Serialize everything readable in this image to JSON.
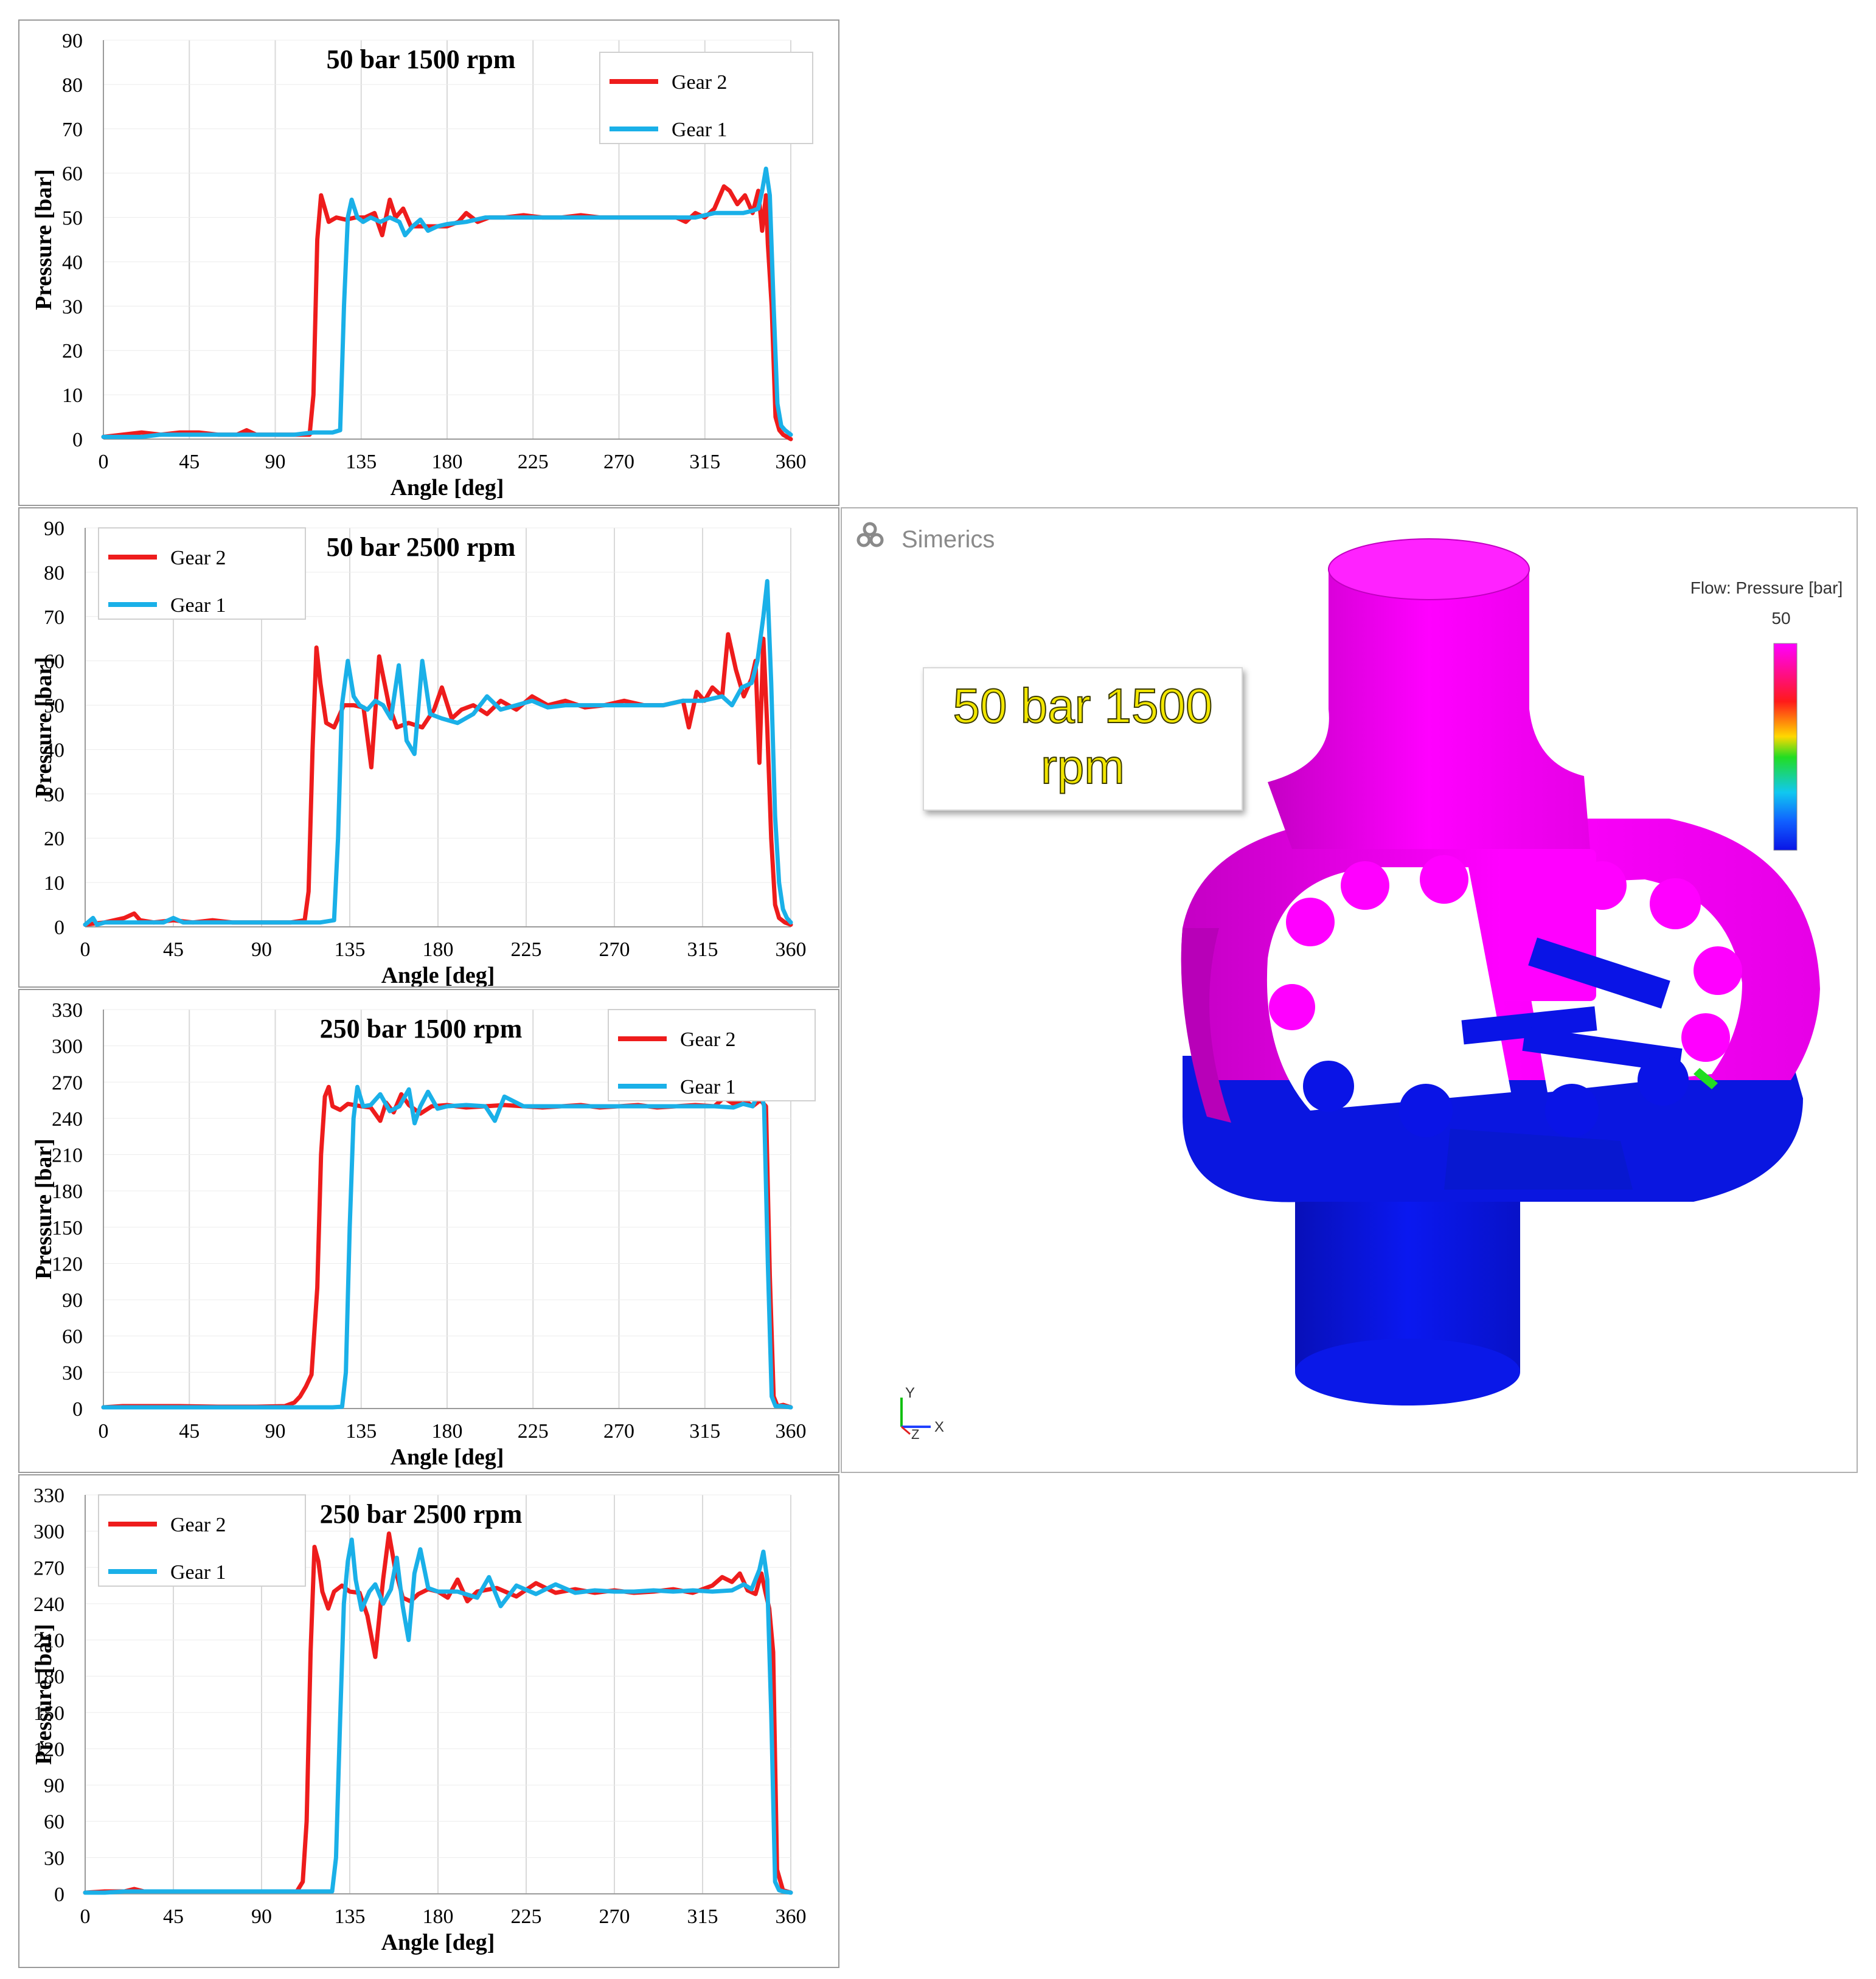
{
  "chart_data": [
    {
      "type": "line",
      "title": "50 bar 1500 rpm",
      "xlabel": "Angle [deg]",
      "ylabel": "Pressure [bar]",
      "xlim": [
        0,
        360
      ],
      "ylim": [
        0,
        90
      ],
      "xticks": [
        0,
        45,
        90,
        135,
        180,
        225,
        270,
        315,
        360
      ],
      "yticks": [
        0,
        10,
        20,
        30,
        40,
        50,
        60,
        70,
        80,
        90
      ],
      "legend": "top-right",
      "grid": true,
      "series": [
        {
          "name": "Gear 2",
          "color": "#ee1c1c",
          "x": [
            0,
            10,
            20,
            30,
            40,
            50,
            60,
            70,
            75,
            80,
            90,
            100,
            108,
            110,
            112,
            114,
            116,
            118,
            122,
            127,
            132,
            137,
            142,
            146,
            150,
            153,
            157,
            161,
            166,
            172,
            180,
            186,
            190,
            196,
            202,
            210,
            220,
            230,
            240,
            250,
            260,
            270,
            280,
            290,
            300,
            305,
            310,
            315,
            320,
            325,
            328,
            332,
            336,
            340,
            343,
            345,
            347,
            348,
            350,
            352,
            354,
            356,
            358,
            360
          ],
          "y": [
            0.5,
            1,
            1.5,
            1,
            1.5,
            1.5,
            1,
            1,
            2,
            1,
            1,
            1,
            1,
            10,
            45,
            55,
            52,
            49,
            50,
            49.5,
            50,
            50,
            51,
            46,
            54,
            50,
            52,
            48,
            48,
            48,
            48,
            49,
            51,
            49,
            50,
            50,
            50.5,
            50,
            50,
            50.5,
            50,
            50,
            50,
            50,
            50,
            49,
            51,
            50,
            52,
            57,
            56,
            53,
            55,
            51,
            56,
            47,
            55,
            44,
            30,
            5,
            2,
            1,
            0.5,
            0
          ]
        },
        {
          "name": "Gear 1",
          "color": "#1ab0e8",
          "x": [
            0,
            10,
            20,
            30,
            40,
            50,
            60,
            70,
            80,
            90,
            100,
            110,
            120,
            124,
            126,
            128,
            130,
            133,
            136,
            140,
            145,
            150,
            155,
            158,
            162,
            166,
            170,
            175,
            180,
            190,
            200,
            210,
            220,
            230,
            240,
            250,
            260,
            270,
            280,
            290,
            300,
            310,
            320,
            330,
            335,
            340,
            343,
            345,
            347,
            349,
            351,
            353,
            355,
            357,
            360
          ],
          "y": [
            0.5,
            0.5,
            0.5,
            1,
            1,
            1,
            1,
            1,
            1,
            1,
            1,
            1.5,
            1.5,
            2,
            30,
            50,
            54,
            50,
            49,
            50,
            49,
            50,
            49,
            46,
            48,
            49.5,
            47,
            48,
            48.5,
            49,
            50,
            50,
            50,
            50,
            50,
            50,
            50,
            50,
            50,
            50,
            50,
            50,
            51,
            51,
            51,
            51.5,
            52,
            56,
            61,
            55,
            30,
            8,
            3,
            2,
            1
          ]
        }
      ]
    },
    {
      "type": "line",
      "title": "50 bar 2500 rpm",
      "xlabel": "Angle [deg]",
      "ylabel": "Pressure [bar]",
      "xlim": [
        0,
        360
      ],
      "ylim": [
        0,
        90
      ],
      "xticks": [
        0,
        45,
        90,
        135,
        180,
        225,
        270,
        315,
        360
      ],
      "yticks": [
        0,
        10,
        20,
        30,
        40,
        50,
        60,
        70,
        80,
        90
      ],
      "legend": "top-left",
      "grid": true,
      "series": [
        {
          "name": "Gear 2",
          "color": "#ee1c1c",
          "x": [
            0,
            10,
            20,
            25,
            28,
            35,
            45,
            55,
            65,
            75,
            85,
            95,
            105,
            112,
            114,
            116,
            118,
            120,
            123,
            127,
            132,
            137,
            142,
            146,
            150,
            155,
            159,
            165,
            172,
            178,
            182,
            187,
            192,
            198,
            205,
            212,
            220,
            228,
            236,
            245,
            255,
            265,
            275,
            285,
            295,
            305,
            308,
            312,
            316,
            320,
            325,
            328,
            332,
            336,
            340,
            342,
            344,
            346,
            348,
            350,
            352,
            354,
            357,
            360
          ],
          "y": [
            0.5,
            1,
            2,
            3,
            1.5,
            1,
            1.5,
            1,
            1.5,
            1,
            1,
            1,
            1,
            1.5,
            8,
            40,
            63,
            55,
            46,
            45,
            50,
            50,
            49.5,
            36,
            61,
            50,
            45,
            46,
            45,
            49,
            54,
            47,
            49,
            50,
            48,
            51,
            49,
            52,
            50,
            51,
            49.5,
            50,
            51,
            50,
            50,
            51,
            45,
            53,
            51,
            54,
            52,
            66,
            58,
            52,
            56,
            60,
            37,
            65,
            45,
            20,
            5,
            2,
            1,
            0.5
          ]
        },
        {
          "name": "Gear 1",
          "color": "#1ab0e8",
          "x": [
            0,
            4,
            6,
            10,
            20,
            30,
            40,
            45,
            50,
            60,
            70,
            80,
            90,
            100,
            110,
            120,
            127,
            129,
            131,
            134,
            137,
            140,
            144,
            148,
            152,
            156,
            160,
            164,
            168,
            172,
            176,
            182,
            190,
            198,
            205,
            212,
            220,
            228,
            236,
            245,
            255,
            265,
            275,
            285,
            295,
            305,
            315,
            325,
            330,
            335,
            340,
            343,
            346,
            348,
            350,
            352,
            354,
            356,
            358,
            360
          ],
          "y": [
            0.5,
            2,
            0.5,
            1,
            1,
            1,
            1,
            2,
            1,
            1,
            1,
            1,
            1,
            1,
            1,
            1,
            1.5,
            20,
            50,
            60,
            52,
            50,
            49,
            51,
            50,
            47,
            59,
            42,
            39,
            60,
            48,
            47,
            46,
            48,
            52,
            49,
            50,
            51,
            49.5,
            50,
            50,
            50,
            50,
            50,
            50,
            51,
            51,
            52,
            50,
            54,
            55,
            60,
            70,
            78,
            55,
            25,
            10,
            4,
            2,
            1
          ]
        }
      ]
    },
    {
      "type": "line",
      "title": "250 bar 1500 rpm",
      "xlabel": "Angle [deg]",
      "ylabel": "Pressure [bar]",
      "xlim": [
        0,
        360
      ],
      "ylim": [
        0,
        330
      ],
      "xticks": [
        0,
        45,
        90,
        135,
        180,
        225,
        270,
        315,
        360
      ],
      "yticks": [
        0,
        30,
        60,
        90,
        120,
        150,
        180,
        210,
        240,
        270,
        300,
        330
      ],
      "legend": "top-right",
      "grid": true,
      "series": [
        {
          "name": "Gear 2",
          "color": "#ee1c1c",
          "x": [
            0,
            10,
            20,
            40,
            60,
            80,
            95,
            100,
            103,
            106,
            109,
            112,
            114,
            116,
            118,
            120,
            124,
            128,
            135,
            140,
            145,
            148,
            152,
            156,
            160,
            166,
            172,
            180,
            190,
            200,
            210,
            220,
            230,
            240,
            250,
            260,
            270,
            280,
            290,
            300,
            310,
            320,
            325,
            330,
            335,
            340,
            344,
            347,
            349,
            351,
            353,
            356,
            360
          ],
          "y": [
            1,
            2,
            2,
            2,
            1.5,
            1.5,
            2,
            5,
            10,
            18,
            28,
            100,
            210,
            258,
            266,
            250,
            247,
            252,
            250,
            249,
            238,
            253,
            245,
            260,
            251,
            244,
            250,
            251,
            249,
            250,
            251,
            250,
            249,
            250,
            251,
            249,
            250,
            251,
            249,
            250,
            251,
            250,
            257,
            252,
            256,
            250,
            255,
            250,
            110,
            10,
            2,
            3,
            1
          ]
        },
        {
          "name": "Gear 1",
          "color": "#1ab0e8",
          "x": [
            0,
            10,
            20,
            40,
            60,
            80,
            100,
            110,
            120,
            125,
            127,
            129,
            131,
            133,
            136,
            140,
            145,
            150,
            155,
            160,
            163,
            166,
            170,
            175,
            180,
            190,
            200,
            205,
            210,
            220,
            230,
            240,
            250,
            260,
            270,
            280,
            290,
            300,
            310,
            320,
            330,
            335,
            340,
            344,
            346,
            348,
            350,
            352,
            355,
            360
          ],
          "y": [
            1,
            1,
            1,
            1,
            1,
            1,
            1,
            1,
            1,
            1.5,
            30,
            150,
            240,
            266,
            250,
            251,
            260,
            246,
            250,
            264,
            236,
            250,
            262,
            248,
            250,
            251,
            250,
            238,
            258,
            250,
            250,
            250,
            250,
            250,
            250,
            250,
            250,
            250,
            250,
            250,
            249,
            252,
            250,
            264,
            250,
            120,
            10,
            2,
            2,
            1
          ]
        }
      ]
    },
    {
      "type": "line",
      "title": "250 bar 2500 rpm",
      "xlabel": "Angle [deg]",
      "ylabel": "Pressure [bar]",
      "xlim": [
        0,
        360
      ],
      "ylim": [
        0,
        330
      ],
      "xticks": [
        0,
        45,
        90,
        135,
        180,
        225,
        270,
        315,
        360
      ],
      "yticks": [
        0,
        30,
        60,
        90,
        120,
        150,
        180,
        210,
        240,
        270,
        300,
        330
      ],
      "legend": "top-left",
      "grid": true,
      "series": [
        {
          "name": "Gear 2",
          "color": "#ee1c1c",
          "x": [
            0,
            10,
            20,
            25,
            30,
            40,
            50,
            60,
            70,
            80,
            90,
            100,
            108,
            111,
            113,
            115,
            117,
            119,
            121,
            124,
            127,
            131,
            135,
            140,
            144,
            148,
            152,
            155,
            158,
            162,
            166,
            170,
            175,
            180,
            185,
            190,
            195,
            200,
            210,
            220,
            230,
            240,
            250,
            260,
            270,
            280,
            290,
            300,
            310,
            320,
            325,
            330,
            334,
            338,
            342,
            345,
            347,
            349,
            351,
            353,
            356,
            360
          ],
          "y": [
            1,
            2,
            2,
            4,
            2,
            2,
            2,
            2,
            2,
            2,
            2,
            2,
            2,
            10,
            60,
            200,
            287,
            275,
            250,
            236,
            250,
            255,
            250,
            249,
            230,
            196,
            260,
            298,
            270,
            245,
            242,
            248,
            252,
            250,
            245,
            260,
            242,
            250,
            253,
            246,
            257,
            249,
            252,
            249,
            251,
            249,
            250,
            252,
            249,
            255,
            262,
            258,
            265,
            251,
            248,
            265,
            250,
            236,
            200,
            20,
            3,
            1
          ]
        },
        {
          "name": "Gear 1",
          "color": "#1ab0e8",
          "x": [
            0,
            10,
            20,
            30,
            40,
            50,
            60,
            70,
            80,
            90,
            100,
            110,
            120,
            126,
            128,
            130,
            132,
            134,
            136,
            138,
            141,
            145,
            148,
            152,
            156,
            159,
            162,
            165,
            168,
            171,
            175,
            180,
            190,
            200,
            206,
            212,
            220,
            230,
            240,
            250,
            260,
            270,
            280,
            290,
            300,
            310,
            320,
            330,
            336,
            340,
            344,
            346,
            348,
            350,
            352,
            354,
            356,
            360
          ],
          "y": [
            1,
            1,
            2,
            2,
            2,
            2,
            2,
            2,
            2,
            2,
            2,
            2,
            2,
            2,
            30,
            140,
            240,
            275,
            293,
            260,
            235,
            250,
            256,
            240,
            252,
            278,
            238,
            210,
            265,
            285,
            253,
            250,
            250,
            245,
            262,
            238,
            255,
            248,
            256,
            249,
            251,
            250,
            250,
            251,
            250,
            251,
            250,
            251,
            256,
            252,
            268,
            283,
            260,
            150,
            10,
            3,
            2,
            1
          ]
        }
      ]
    }
  ],
  "simulation": {
    "logo": "Simerics",
    "caption_line1": "50 bar 1500",
    "caption_line2": "rpm",
    "colorbar_title": "Flow: Pressure [bar]",
    "colorbar_max": "50",
    "axis_y": "Y",
    "axis_x": "X",
    "axis_z": "Z",
    "colors": {
      "high": "#ff00ff",
      "low": "#0a14e6"
    }
  }
}
